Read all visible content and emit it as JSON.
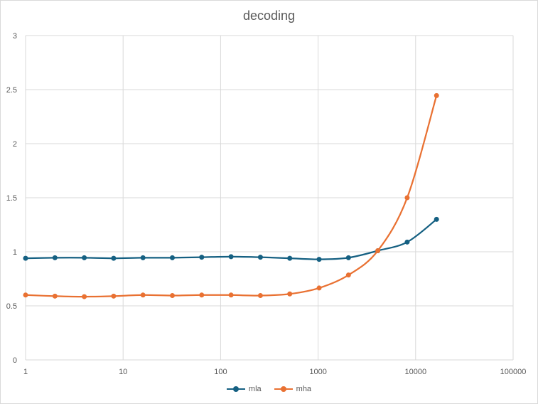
{
  "chart_data": {
    "type": "line",
    "title": "decoding",
    "xscale": "log",
    "xlim": [
      1,
      100000
    ],
    "ylim": [
      0,
      3
    ],
    "xticks": [
      "1",
      "10",
      "100",
      "1000",
      "10000",
      "100000"
    ],
    "yticks": [
      "0",
      "0.5",
      "1",
      "1.5",
      "2",
      "2.5",
      "3"
    ],
    "grid": true,
    "legend_position": "bottom",
    "x": [
      1,
      2,
      4,
      8,
      16,
      32,
      64,
      128,
      256,
      512,
      1024,
      2048,
      4096,
      8192,
      16384
    ],
    "series": [
      {
        "name": "mla",
        "color": "#156082",
        "values": [
          0.94,
          0.945,
          0.945,
          0.94,
          0.945,
          0.945,
          0.95,
          0.955,
          0.95,
          0.94,
          0.93,
          0.945,
          1.01,
          1.09,
          1.3
        ]
      },
      {
        "name": "mha",
        "color": "#e97132",
        "values": [
          0.6,
          0.59,
          0.585,
          0.59,
          0.6,
          0.595,
          0.6,
          0.6,
          0.595,
          0.61,
          0.665,
          0.785,
          1.01,
          1.5,
          2.445
        ]
      }
    ]
  }
}
